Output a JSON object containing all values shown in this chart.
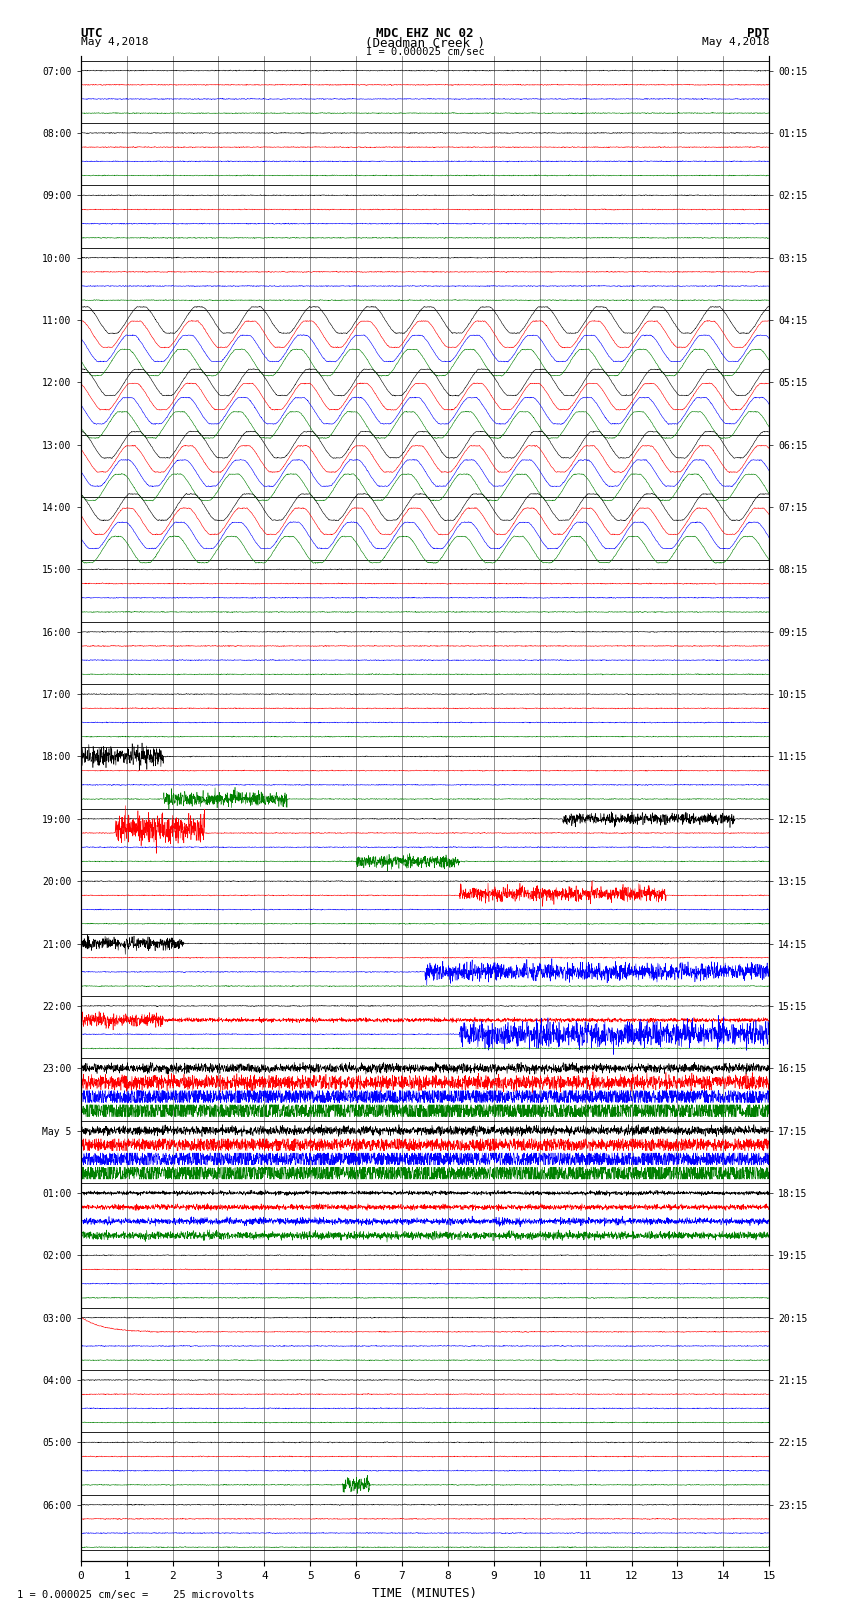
{
  "title_line1": "MDC EHZ NC 02",
  "title_line2": "(Deadman Creek )",
  "title_line3": "I = 0.000025 cm/sec",
  "label_utc": "UTC",
  "label_pdt": "PDT",
  "date_left": "May 4,2018",
  "date_right": "May 4,2018",
  "xlabel": "TIME (MINUTES)",
  "footer": "1 = 0.000025 cm/sec =    25 microvolts",
  "x_min": 0,
  "x_max": 15,
  "x_ticks": [
    0,
    1,
    2,
    3,
    4,
    5,
    6,
    7,
    8,
    9,
    10,
    11,
    12,
    13,
    14,
    15
  ],
  "utc_labels_major": [
    "07:00",
    "08:00",
    "09:00",
    "10:00",
    "11:00",
    "12:00",
    "13:00",
    "14:00",
    "15:00",
    "16:00",
    "17:00",
    "18:00",
    "19:00",
    "20:00",
    "21:00",
    "22:00",
    "23:00",
    "May 5",
    "01:00",
    "02:00",
    "03:00",
    "04:00",
    "05:00",
    "06:00"
  ],
  "pdt_labels_major": [
    "00:15",
    "01:15",
    "02:15",
    "03:15",
    "04:15",
    "05:15",
    "06:15",
    "07:15",
    "08:15",
    "09:15",
    "10:15",
    "11:15",
    "12:15",
    "13:15",
    "14:15",
    "15:15",
    "16:15",
    "17:15",
    "18:15",
    "19:15",
    "20:15",
    "21:15",
    "22:15",
    "23:15"
  ],
  "n_groups": 24,
  "n_channels": 4,
  "colors": [
    "black",
    "red",
    "blue",
    "green"
  ],
  "bg_color": "white",
  "line_width": 0.4,
  "noise_seed": 42
}
